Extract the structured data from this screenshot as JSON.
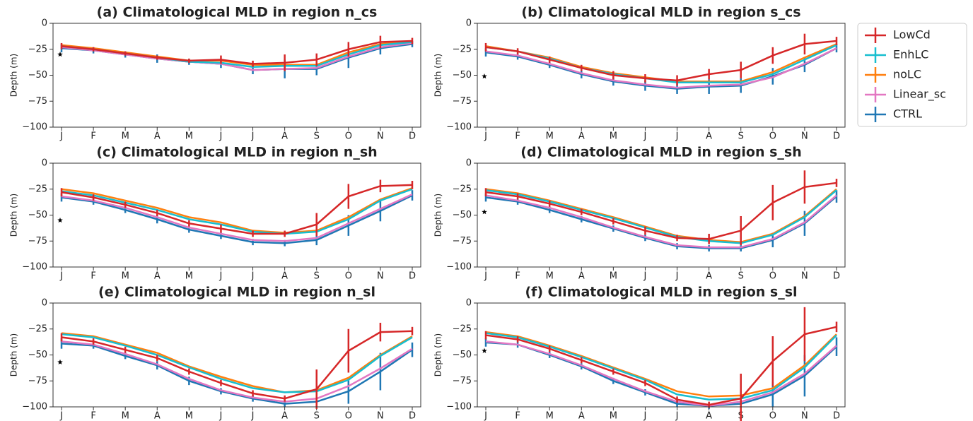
{
  "chart_data": [
    {
      "type": "line",
      "title": "(a) Climatological MLD in region n_cs",
      "y_label": "Depth (m)",
      "categories": [
        "J",
        "F",
        "M",
        "A",
        "M",
        "J",
        "J",
        "A",
        "S",
        "O",
        "N",
        "D"
      ],
      "ylim": [
        -100,
        0
      ],
      "yticks": [
        {
          "value": -100,
          "label": "−100"
        },
        {
          "value": -75,
          "label": "−75"
        },
        {
          "value": -50,
          "label": "−50"
        },
        {
          "value": -25,
          "label": "−25"
        },
        0
      ],
      "star_value": -30,
      "series": [
        {
          "name": "LowCd",
          "color": "#d62728",
          "values": [
            -22,
            -25,
            -29,
            -33,
            -36,
            -35,
            -39,
            -38,
            -35,
            -25,
            -18,
            -17
          ],
          "errors": [
            3,
            2,
            2,
            2,
            2,
            4,
            3,
            8,
            6,
            7,
            6,
            3
          ]
        },
        {
          "name": "EnhLC",
          "color": "#17becf",
          "values": [
            -22,
            -25,
            -29,
            -33,
            -37,
            -38,
            -42,
            -41,
            -41,
            -30,
            -21,
            -18
          ]
        },
        {
          "name": "noLC",
          "color": "#ff7f0e",
          "values": [
            -21,
            -24,
            -28,
            -32,
            -36,
            -36,
            -40,
            -40,
            -40,
            -28,
            -20,
            -17
          ]
        },
        {
          "name": "Linear_sc",
          "color": "#e377c2",
          "values": [
            -23,
            -26,
            -30,
            -34,
            -37,
            -39,
            -45,
            -44,
            -43,
            -32,
            -23,
            -19
          ]
        },
        {
          "name": "CTRL",
          "color": "#1f77b4",
          "values": [
            -24,
            -26,
            -30,
            -34,
            -37,
            -39,
            -45,
            -44,
            -44,
            -33,
            -24,
            -20
          ],
          "errors": [
            4,
            3,
            3,
            4,
            3,
            4,
            4,
            9,
            6,
            10,
            6,
            3
          ]
        }
      ]
    },
    {
      "type": "line",
      "title": "(b) Climatological MLD in region s_cs",
      "y_label": "Depth (m)",
      "categories": [
        "J",
        "F",
        "M",
        "A",
        "M",
        "J",
        "J",
        "A",
        "S",
        "O",
        "N",
        "D"
      ],
      "ylim": [
        -100,
        0
      ],
      "yticks": [
        {
          "value": -100,
          "label": "−100"
        },
        {
          "value": -75,
          "label": "−75"
        },
        {
          "value": -50,
          "label": "−50"
        },
        {
          "value": -25,
          "label": "−25"
        },
        0
      ],
      "star_value": -51,
      "series": [
        {
          "name": "LowCd",
          "color": "#d62728",
          "values": [
            -23,
            -27,
            -35,
            -43,
            -50,
            -53,
            -55,
            -49,
            -45,
            -31,
            -20,
            -17
          ],
          "errors": [
            4,
            3,
            3,
            3,
            4,
            4,
            5,
            5,
            8,
            8,
            10,
            4
          ]
        },
        {
          "name": "EnhLC",
          "color": "#17becf",
          "values": [
            -23,
            -27,
            -34,
            -43,
            -49,
            -53,
            -57,
            -57,
            -57,
            -49,
            -35,
            -21
          ]
        },
        {
          "name": "noLC",
          "color": "#ff7f0e",
          "values": [
            -22,
            -27,
            -33,
            -42,
            -48,
            -52,
            -56,
            -56,
            -56,
            -47,
            -33,
            -20
          ]
        },
        {
          "name": "Linear_sc",
          "color": "#e377c2",
          "values": [
            -27,
            -31,
            -39,
            -48,
            -55,
            -59,
            -62,
            -60,
            -59,
            -52,
            -39,
            -24
          ]
        },
        {
          "name": "CTRL",
          "color": "#1f77b4",
          "values": [
            -28,
            -32,
            -40,
            -49,
            -56,
            -60,
            -63,
            -61,
            -60,
            -51,
            -40,
            -24
          ],
          "errors": [
            4,
            3,
            3,
            4,
            4,
            5,
            5,
            7,
            7,
            8,
            7,
            4
          ]
        }
      ]
    },
    {
      "type": "line",
      "title": "(c) Climatological MLD in region n_sh",
      "y_label": "Depth (m)",
      "categories": [
        "J",
        "F",
        "M",
        "A",
        "M",
        "J",
        "J",
        "A",
        "S",
        "O",
        "N",
        "D"
      ],
      "ylim": [
        -100,
        0
      ],
      "yticks": [
        {
          "value": -100,
          "label": "−100"
        },
        {
          "value": -75,
          "label": "−75"
        },
        {
          "value": -50,
          "label": "−50"
        },
        {
          "value": -25,
          "label": "−25"
        },
        0
      ],
      "star_value": -55,
      "series": [
        {
          "name": "LowCd",
          "color": "#d62728",
          "values": [
            -28,
            -33,
            -40,
            -48,
            -58,
            -63,
            -68,
            -68,
            -59,
            -32,
            -22,
            -21
          ],
          "errors": [
            4,
            3,
            3,
            3,
            3,
            4,
            3,
            3,
            11,
            12,
            6,
            4
          ]
        },
        {
          "name": "EnhLC",
          "color": "#17becf",
          "values": [
            -27,
            -31,
            -38,
            -45,
            -54,
            -59,
            -66,
            -68,
            -66,
            -54,
            -36,
            -25
          ]
        },
        {
          "name": "noLC",
          "color": "#ff7f0e",
          "values": [
            -25,
            -29,
            -36,
            -43,
            -52,
            -57,
            -65,
            -67,
            -65,
            -52,
            -35,
            -24
          ]
        },
        {
          "name": "Linear_sc",
          "color": "#e377c2",
          "values": [
            -32,
            -36,
            -43,
            -52,
            -62,
            -68,
            -74,
            -75,
            -72,
            -58,
            -44,
            -30
          ]
        },
        {
          "name": "CTRL",
          "color": "#1f77b4",
          "values": [
            -33,
            -37,
            -45,
            -54,
            -64,
            -70,
            -76,
            -77,
            -74,
            -60,
            -46,
            -31
          ],
          "errors": [
            4,
            3,
            3,
            4,
            3,
            3,
            3,
            3,
            5,
            10,
            10,
            5
          ]
        }
      ]
    },
    {
      "type": "line",
      "title": "(d) Climatological MLD in region s_sh",
      "y_label": "Depth (m)",
      "categories": [
        "J",
        "F",
        "M",
        "A",
        "M",
        "J",
        "J",
        "A",
        "S",
        "O",
        "N",
        "D"
      ],
      "ylim": [
        -100,
        0
      ],
      "yticks": [
        {
          "value": -100,
          "label": "−100"
        },
        {
          "value": -75,
          "label": "−75"
        },
        {
          "value": -50,
          "label": "−50"
        },
        {
          "value": -25,
          "label": "−25"
        },
        0
      ],
      "star_value": -47,
      "series": [
        {
          "name": "LowCd",
          "color": "#d62728",
          "values": [
            -28,
            -32,
            -39,
            -47,
            -56,
            -65,
            -72,
            -73,
            -65,
            -38,
            -23,
            -19
          ],
          "errors": [
            4,
            3,
            3,
            3,
            3,
            4,
            3,
            5,
            14,
            17,
            16,
            4
          ]
        },
        {
          "name": "EnhLC",
          "color": "#17becf",
          "values": [
            -26,
            -30,
            -37,
            -45,
            -53,
            -62,
            -71,
            -75,
            -77,
            -69,
            -52,
            -26
          ]
        },
        {
          "name": "noLC",
          "color": "#ff7f0e",
          "values": [
            -25,
            -29,
            -36,
            -44,
            -52,
            -61,
            -70,
            -74,
            -76,
            -68,
            -51,
            -25
          ]
        },
        {
          "name": "Linear_sc",
          "color": "#e377c2",
          "values": [
            -31,
            -36,
            -43,
            -52,
            -62,
            -71,
            -79,
            -81,
            -81,
            -73,
            -57,
            -31
          ]
        },
        {
          "name": "CTRL",
          "color": "#1f77b4",
          "values": [
            -33,
            -37,
            -45,
            -54,
            -63,
            -72,
            -80,
            -82,
            -82,
            -74,
            -58,
            -32
          ],
          "errors": [
            4,
            3,
            3,
            3,
            3,
            3,
            3,
            3,
            3,
            7,
            12,
            6
          ]
        }
      ]
    },
    {
      "type": "line",
      "title": "(e) Climatological MLD in region n_sl",
      "y_label": "Depth (m)",
      "categories": [
        "J",
        "F",
        "M",
        "A",
        "M",
        "J",
        "J",
        "A",
        "S",
        "O",
        "N",
        "D"
      ],
      "ylim": [
        -100,
        0
      ],
      "yticks": [
        {
          "value": -100,
          "label": "−100"
        },
        {
          "value": -75,
          "label": "−75"
        },
        {
          "value": -50,
          "label": "−50"
        },
        {
          "value": -25,
          "label": "−25"
        },
        0
      ],
      "star_value": -57,
      "series": [
        {
          "name": "LowCd",
          "color": "#d62728",
          "values": [
            -33,
            -37,
            -45,
            -53,
            -66,
            -77,
            -87,
            -92,
            -83,
            -46,
            -28,
            -27
          ],
          "errors": [
            4,
            3,
            3,
            3,
            3,
            3,
            3,
            3,
            19,
            21,
            9,
            4
          ]
        },
        {
          "name": "EnhLC",
          "color": "#17becf",
          "values": [
            -30,
            -33,
            -41,
            -50,
            -62,
            -73,
            -82,
            -86,
            -85,
            -74,
            -51,
            -33
          ]
        },
        {
          "name": "noLC",
          "color": "#ff7f0e",
          "values": [
            -29,
            -32,
            -40,
            -48,
            -61,
            -71,
            -80,
            -86,
            -84,
            -72,
            -50,
            -32
          ]
        },
        {
          "name": "Linear_sc",
          "color": "#e377c2",
          "values": [
            -37,
            -40,
            -49,
            -59,
            -73,
            -84,
            -91,
            -95,
            -92,
            -80,
            -63,
            -44
          ]
        },
        {
          "name": "CTRL",
          "color": "#1f77b4",
          "values": [
            -39,
            -41,
            -51,
            -60,
            -75,
            -85,
            -92,
            -97,
            -95,
            -85,
            -66,
            -45
          ],
          "errors": [
            5,
            3,
            3,
            4,
            4,
            3,
            3,
            3,
            5,
            12,
            18,
            7
          ]
        }
      ]
    },
    {
      "type": "line",
      "title": "(f) Climatological MLD in region s_sl",
      "y_label": "Depth (m)",
      "categories": [
        "J",
        "F",
        "M",
        "A",
        "M",
        "J",
        "J",
        "A",
        "S",
        "O",
        "N",
        "D"
      ],
      "ylim": [
        -100,
        0
      ],
      "yticks": [
        {
          "value": -100,
          "label": "−100"
        },
        {
          "value": -75,
          "label": "−75"
        },
        {
          "value": -50,
          "label": "−50"
        },
        {
          "value": -25,
          "label": "−25"
        },
        0
      ],
      "star_value": -46,
      "series": [
        {
          "name": "LowCd",
          "color": "#d62728",
          "values": [
            -31,
            -35,
            -44,
            -55,
            -66,
            -77,
            -93,
            -98,
            -92,
            -56,
            -30,
            -23
          ],
          "errors": [
            4,
            3,
            3,
            3,
            3,
            3,
            3,
            3,
            24,
            24,
            26,
            5
          ]
        },
        {
          "name": "EnhLC",
          "color": "#17becf",
          "values": [
            -29,
            -33,
            -42,
            -52,
            -63,
            -74,
            -88,
            -93,
            -92,
            -84,
            -62,
            -31
          ]
        },
        {
          "name": "noLC",
          "color": "#ff7f0e",
          "values": [
            -28,
            -32,
            -41,
            -51,
            -62,
            -73,
            -85,
            -90,
            -89,
            -82,
            -60,
            -30
          ]
        },
        {
          "name": "Linear_sc",
          "color": "#e377c2",
          "values": [
            -37,
            -40,
            -49,
            -60,
            -73,
            -85,
            -95,
            -99,
            -95,
            -86,
            -68,
            -41
          ]
        },
        {
          "name": "CTRL",
          "color": "#1f77b4",
          "values": [
            -38,
            -40,
            -50,
            -61,
            -75,
            -86,
            -97,
            -99,
            -97,
            -88,
            -70,
            -42
          ],
          "errors": [
            4,
            3,
            3,
            3,
            3,
            3,
            3,
            3,
            4,
            12,
            20,
            9
          ]
        }
      ]
    }
  ]
}
